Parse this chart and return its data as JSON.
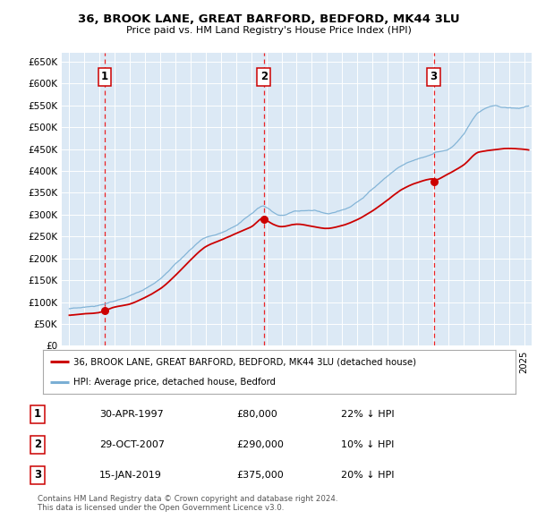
{
  "title": "36, BROOK LANE, GREAT BARFORD, BEDFORD, MK44 3LU",
  "subtitle": "Price paid vs. HM Land Registry's House Price Index (HPI)",
  "xlim": [
    1994.5,
    2025.5
  ],
  "ylim": [
    0,
    670000
  ],
  "yticks": [
    0,
    50000,
    100000,
    150000,
    200000,
    250000,
    300000,
    350000,
    400000,
    450000,
    500000,
    550000,
    600000,
    650000
  ],
  "ytick_labels": [
    "£0",
    "£50K",
    "£100K",
    "£150K",
    "£200K",
    "£250K",
    "£300K",
    "£350K",
    "£400K",
    "£450K",
    "£500K",
    "£550K",
    "£600K",
    "£650K"
  ],
  "xticks": [
    1995,
    1996,
    1997,
    1998,
    1999,
    2000,
    2001,
    2002,
    2003,
    2004,
    2005,
    2006,
    2007,
    2008,
    2009,
    2010,
    2011,
    2012,
    2013,
    2014,
    2015,
    2016,
    2017,
    2018,
    2019,
    2020,
    2021,
    2022,
    2023,
    2024,
    2025
  ],
  "sale_dates": [
    1997.33,
    2007.83,
    2019.04
  ],
  "sale_prices": [
    80000,
    290000,
    375000
  ],
  "sale_labels": [
    "1",
    "2",
    "3"
  ],
  "legend_line1": "36, BROOK LANE, GREAT BARFORD, BEDFORD, MK44 3LU (detached house)",
  "legend_line2": "HPI: Average price, detached house, Bedford",
  "table_rows": [
    [
      "1",
      "30-APR-1997",
      "£80,000",
      "22% ↓ HPI"
    ],
    [
      "2",
      "29-OCT-2007",
      "£290,000",
      "10% ↓ HPI"
    ],
    [
      "3",
      "15-JAN-2019",
      "£375,000",
      "20% ↓ HPI"
    ]
  ],
  "footnote": "Contains HM Land Registry data © Crown copyright and database right 2024.\nThis data is licensed under the Open Government Licence v3.0.",
  "red_line_color": "#cc0000",
  "blue_line_color": "#7aafd4",
  "dashed_vline_color": "#ee0000",
  "plot_bg": "#dce9f5",
  "grid_color": "#ffffff"
}
